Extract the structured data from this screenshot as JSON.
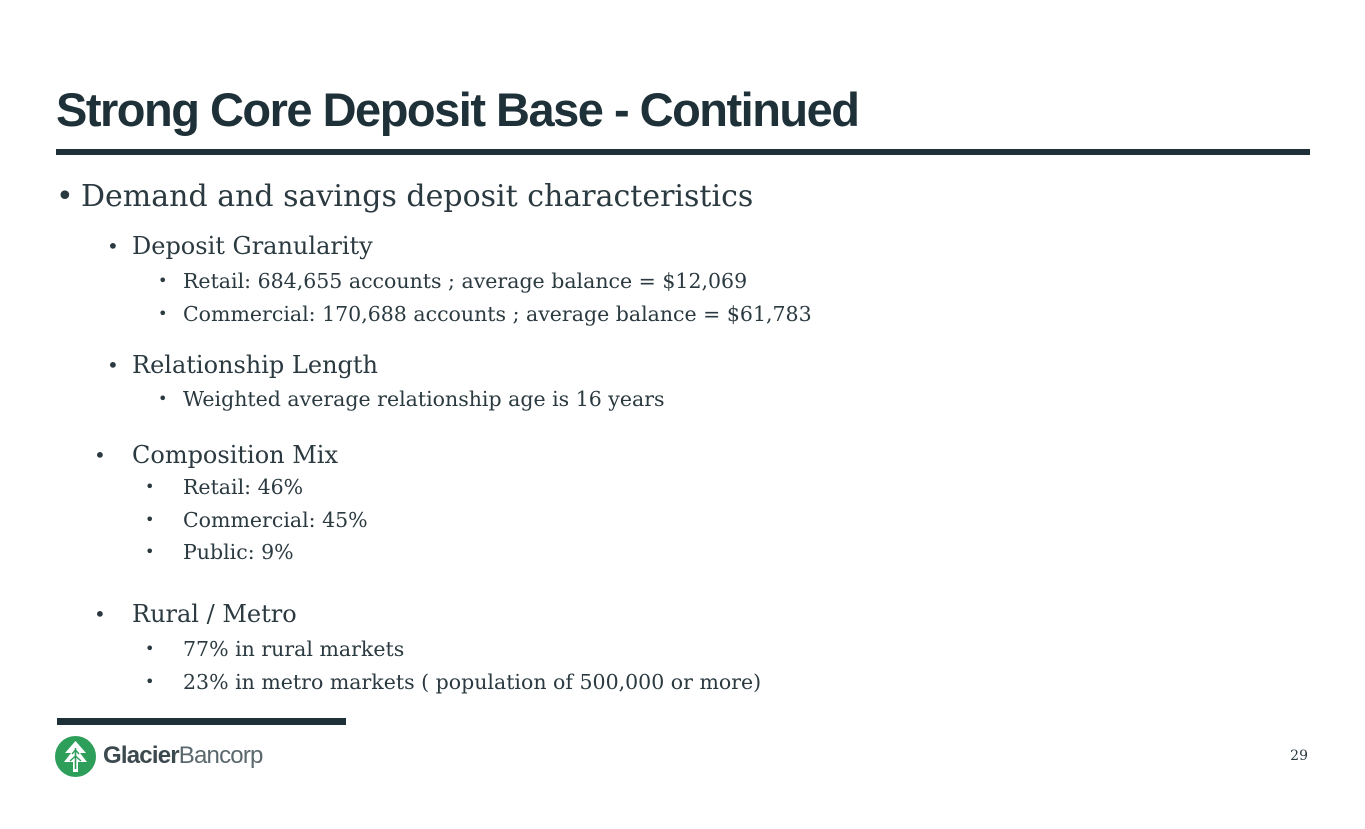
{
  "slide": {
    "title": "Strong Core Deposit Base - Continued",
    "page_number": "29",
    "bullet_char": "•"
  },
  "content": {
    "main": "Demand and savings deposit characteristics",
    "sections": [
      {
        "heading": "Deposit Granularity",
        "items": [
          "Retail: 684,655 accounts ; average balance = $12,069",
          "Commercial: 170,688 accounts ; average balance = $61,783"
        ]
      },
      {
        "heading": "Relationship Length",
        "items": [
          "Weighted average relationship age is 16 years"
        ]
      },
      {
        "heading": "Composition Mix",
        "items": [
          "Retail: 46%",
          "Commercial: 45%",
          "Public: 9%"
        ]
      },
      {
        "heading": "Rural / Metro",
        "items": [
          "77% in rural markets",
          "23% in metro markets ( population of 500,000 or more)"
        ]
      }
    ]
  },
  "logo": {
    "name_bold": "Glacier",
    "name_light": "Bancorp",
    "icon": "glacier-tree-icon",
    "color": "#2e9e5b"
  },
  "colors": {
    "title": "#1e3038",
    "rule": "#1e3038",
    "text": "#2b3a40",
    "logo_green": "#2e9e5b"
  }
}
